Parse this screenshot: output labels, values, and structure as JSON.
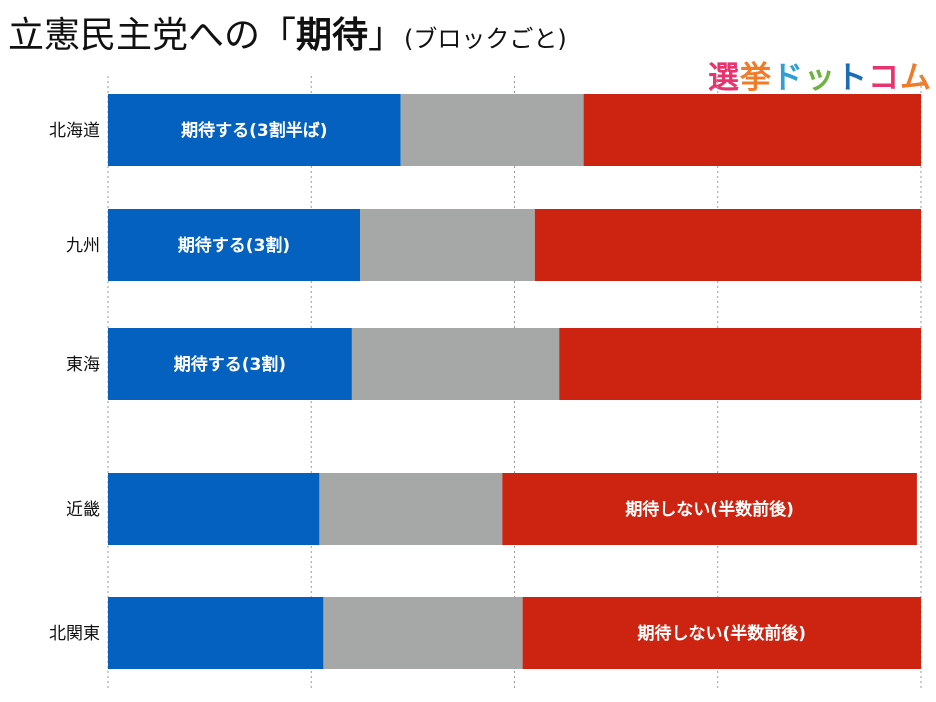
{
  "title": {
    "main": "立憲民主党への「",
    "emphasis": "期待",
    "close": "」",
    "subtitle": "(ブロックごと)"
  },
  "logo": {
    "chars": [
      "選",
      "挙",
      "ド",
      "ッ",
      "ト",
      "コ",
      "ム"
    ]
  },
  "colors": {
    "expect": "#0461c0",
    "neutral": "#a6a8a7",
    "not_expect": "#cc2410"
  },
  "chart_data": {
    "type": "bar",
    "orientation": "horizontal",
    "stacked": true,
    "categories": [
      "北海道",
      "九州",
      "東海",
      "近畿",
      "北関東"
    ],
    "series": [
      {
        "color": "#0461c0",
        "values": [
          0.36,
          0.31,
          0.3,
          0.26,
          0.265
        ]
      },
      {
        "color": "#a6a8a7",
        "values": [
          0.225,
          0.215,
          0.255,
          0.225,
          0.245
        ]
      },
      {
        "color": "#cc2410",
        "values": [
          0.415,
          0.475,
          0.445,
          0.51,
          0.49
        ]
      }
    ],
    "annotations": [
      {
        "category": "北海道",
        "series": 0,
        "text": "期待する(3割半ば)"
      },
      {
        "category": "九州",
        "series": 0,
        "text": "期待する(3割)"
      },
      {
        "category": "東海",
        "series": 0,
        "text": "期待する(3割)"
      },
      {
        "category": "近畿",
        "series": 2,
        "text": "期待しない(半数前後)"
      },
      {
        "category": "北関東",
        "series": 2,
        "text": "期待しない(半数前後)"
      }
    ],
    "xlim": [
      0,
      1
    ],
    "grid": true
  }
}
